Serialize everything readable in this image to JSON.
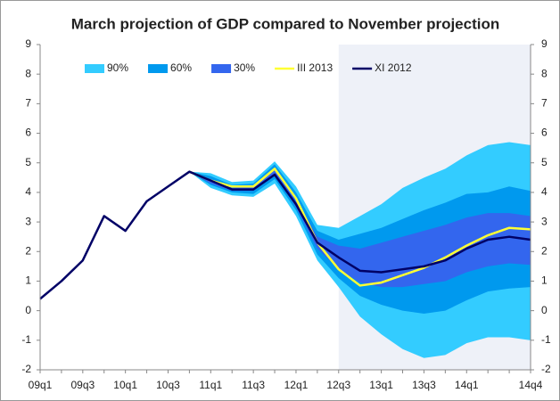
{
  "chart_data": {
    "type": "fan",
    "title": "March projection of GDP compared to November projection",
    "categories": [
      "09q1",
      null,
      "09q3",
      null,
      "10q1",
      null,
      "10q3",
      null,
      "11q1",
      null,
      "11q3",
      null,
      "12q1",
      null,
      "12q3",
      null,
      "13q1",
      null,
      "13q3",
      null,
      "14q1",
      null,
      null,
      "14q4"
    ],
    "highlight_start": "12q3",
    "highlight_color": "#eef1f8",
    "ylim": [
      -2,
      9
    ],
    "yticks": [
      -2,
      -1,
      0,
      1,
      2,
      3,
      4,
      5,
      6,
      7,
      8,
      9
    ],
    "y2lim": [
      -2,
      9
    ],
    "y2ticks": [
      -2,
      -1,
      0,
      1,
      2,
      3,
      4,
      5,
      6,
      7,
      8,
      9
    ],
    "grid": false,
    "legend": "top",
    "series": [
      {
        "name": "90%",
        "color": "#33ccff",
        "upper": [
          null,
          null,
          null,
          null,
          null,
          null,
          null,
          4.7,
          4.65,
          4.35,
          4.4,
          5.05,
          4.2,
          2.9,
          2.8,
          3.2,
          3.6,
          4.15,
          4.5,
          4.8,
          5.25,
          5.6,
          5.7,
          5.6
        ],
        "lower": [
          null,
          null,
          null,
          null,
          null,
          null,
          null,
          4.7,
          4.15,
          3.9,
          3.85,
          4.3,
          3.2,
          1.7,
          0.8,
          -0.2,
          -0.8,
          -1.3,
          -1.6,
          -1.5,
          -1.1,
          -0.9,
          -0.9,
          -1.0
        ]
      },
      {
        "name": "60%",
        "color": "#0099ee",
        "upper": [
          null,
          null,
          null,
          null,
          null,
          null,
          null,
          4.7,
          4.55,
          4.25,
          4.3,
          4.95,
          4.0,
          2.7,
          2.4,
          2.6,
          2.8,
          3.1,
          3.4,
          3.65,
          3.95,
          4.0,
          4.2,
          4.05
        ],
        "lower": [
          null,
          null,
          null,
          null,
          null,
          null,
          null,
          4.7,
          4.25,
          4.0,
          3.95,
          4.45,
          3.4,
          1.9,
          1.1,
          0.5,
          0.2,
          0.0,
          -0.1,
          0.0,
          0.35,
          0.65,
          0.75,
          0.8
        ]
      },
      {
        "name": "30%",
        "color": "#3366ee",
        "upper": [
          null,
          null,
          null,
          null,
          null,
          null,
          null,
          4.7,
          4.45,
          4.15,
          4.2,
          4.8,
          3.8,
          2.5,
          2.2,
          2.1,
          2.3,
          2.5,
          2.7,
          2.9,
          3.15,
          3.3,
          3.3,
          3.2
        ],
        "lower": [
          null,
          null,
          null,
          null,
          null,
          null,
          null,
          4.7,
          4.3,
          4.05,
          4.05,
          4.6,
          3.5,
          2.1,
          1.4,
          0.95,
          0.8,
          0.8,
          0.9,
          1.0,
          1.3,
          1.5,
          1.6,
          1.55
        ]
      },
      {
        "name": "III 2013",
        "color": "#ffff33",
        "values": [
          null,
          null,
          null,
          null,
          null,
          null,
          null,
          4.7,
          4.4,
          4.2,
          4.2,
          4.8,
          3.8,
          2.3,
          1.4,
          0.85,
          0.95,
          1.2,
          1.45,
          1.8,
          2.2,
          2.55,
          2.8,
          2.75
        ]
      },
      {
        "name": "XI 2012",
        "color": "#000066",
        "values": [
          0.4,
          1.0,
          1.7,
          3.2,
          2.7,
          3.7,
          4.2,
          4.7,
          4.4,
          4.1,
          4.1,
          4.6,
          3.6,
          2.3,
          1.8,
          1.35,
          1.3,
          1.4,
          1.5,
          1.7,
          2.1,
          2.4,
          2.5,
          2.4
        ]
      }
    ]
  }
}
